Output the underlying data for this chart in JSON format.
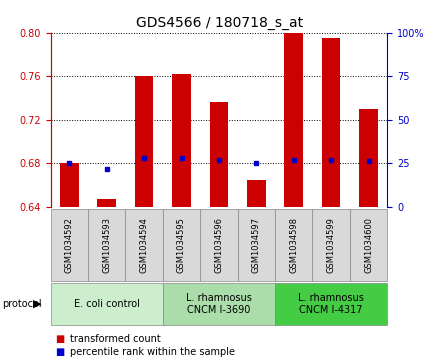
{
  "title": "GDS4566 / 180718_s_at",
  "samples": [
    "GSM1034592",
    "GSM1034593",
    "GSM1034594",
    "GSM1034595",
    "GSM1034596",
    "GSM1034597",
    "GSM1034598",
    "GSM1034599",
    "GSM1034600"
  ],
  "red_values": [
    0.68,
    0.647,
    0.76,
    0.762,
    0.736,
    0.665,
    0.8,
    0.795,
    0.73
  ],
  "blue_values": [
    0.68,
    0.675,
    0.685,
    0.685,
    0.683,
    0.68,
    0.683,
    0.683,
    0.682
  ],
  "ylim": [
    0.64,
    0.8
  ],
  "yticks_left": [
    0.64,
    0.68,
    0.72,
    0.76,
    0.8
  ],
  "right_ytick_vals": [
    0,
    25,
    50,
    75,
    100
  ],
  "bar_bottom": 0.64,
  "bar_color": "#cc0000",
  "dot_color": "#0000cc",
  "protocol_groups": [
    {
      "label": "E. coli control",
      "start": 0,
      "end": 3,
      "color": "#cceecc"
    },
    {
      "label": "L. rhamnosus\nCNCM I-3690",
      "start": 3,
      "end": 6,
      "color": "#aaddaa"
    },
    {
      "label": "L. rhamnosus\nCNCM I-4317",
      "start": 6,
      "end": 9,
      "color": "#44cc44"
    }
  ],
  "legend_red_label": "transformed count",
  "legend_blue_label": "percentile rank within the sample",
  "title_fontsize": 10,
  "tick_fontsize": 7,
  "sample_fontsize": 6,
  "proto_fontsize": 7,
  "legend_fontsize": 7
}
